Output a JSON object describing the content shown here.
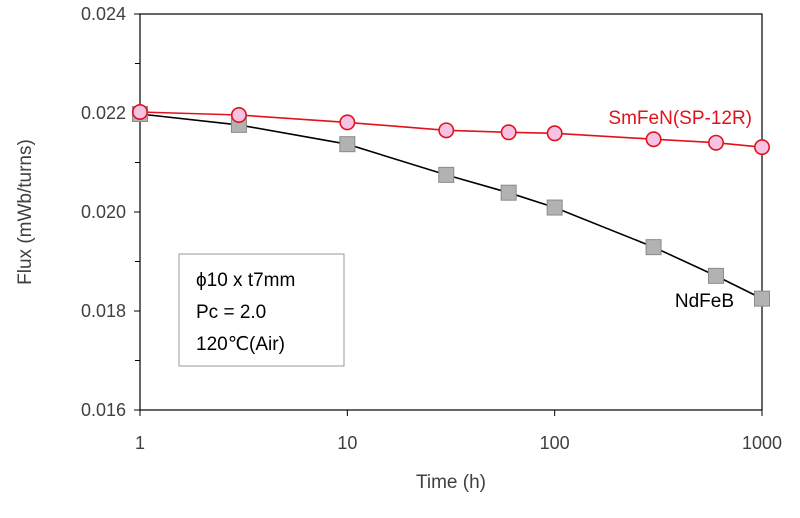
{
  "chart_data": {
    "type": "line",
    "xscale": "log",
    "xlabel": "Time (h)",
    "ylabel": "Flux (mWb/turns)",
    "xlim": [
      1,
      1000
    ],
    "ylim": [
      0.016,
      0.024
    ],
    "x_ticks": [
      1,
      10,
      100,
      1000
    ],
    "x_tick_labels": [
      "1",
      "10",
      "100",
      "1000"
    ],
    "y_ticks": [
      0.016,
      0.018,
      0.02,
      0.022,
      0.024
    ],
    "y_tick_labels": [
      "0.016",
      "0.018",
      "0.020",
      "0.022",
      "0.024"
    ],
    "y_minor_step": 0.001,
    "grid": false,
    "series": [
      {
        "name": "SmFeN(SP-12R)",
        "color": "#e0131b",
        "marker": "circle",
        "marker_fill": "#f6c3e6",
        "x": [
          1,
          3,
          10,
          30,
          60,
          100,
          300,
          600,
          1000
        ],
        "y": [
          0.02202,
          0.02196,
          0.02181,
          0.02165,
          0.02161,
          0.02159,
          0.02147,
          0.0214,
          0.02131
        ]
      },
      {
        "name": "NdFeB",
        "color": "#000000",
        "marker": "square",
        "marker_fill": "#b2b2b2",
        "x": [
          1,
          3,
          10,
          30,
          60,
          100,
          300,
          600,
          1000
        ],
        "y": [
          0.02198,
          0.02176,
          0.02137,
          0.02075,
          0.02039,
          0.02009,
          0.01929,
          0.01871,
          0.01825
        ]
      }
    ],
    "annotation_box": [
      "ϕ10 x t7mm",
      "Pc = 2.0",
      "120℃(Air)"
    ]
  }
}
